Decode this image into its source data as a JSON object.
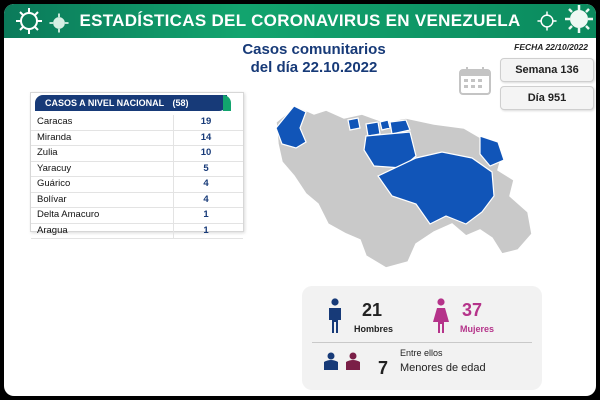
{
  "header": {
    "title": "ESTADÍSTICAS DEL CORONAVIRUS EN VENEZUELA",
    "fecha": "FECHA 22/10/2022"
  },
  "subtitle": {
    "line1": "Casos comunitarios",
    "line2": "del día 22.10.2022"
  },
  "info": {
    "semana": "Semana 136",
    "dia": "Día 951"
  },
  "table": {
    "header_label": "CASOS A NIVEL NACIONAL",
    "header_count": "(58)",
    "rows": [
      {
        "state": "Caracas",
        "cases": "19"
      },
      {
        "state": "Miranda",
        "cases": "14"
      },
      {
        "state": "Zulia",
        "cases": "10"
      },
      {
        "state": "Yaracuy",
        "cases": "5"
      },
      {
        "state": "Guárico",
        "cases": "4"
      },
      {
        "state": "Bolívar",
        "cases": "4"
      },
      {
        "state": "Delta Amacuro",
        "cases": "1"
      },
      {
        "state": "Aragua",
        "cases": "1"
      }
    ]
  },
  "stats": {
    "men_count": "21",
    "men_label": "Hombres",
    "women_count": "37",
    "women_label": "Mujeres",
    "minors_intro": "Entre ellos",
    "minors_count": "7",
    "minors_label": "Menores de edad"
  },
  "colors": {
    "brand_blue": "#173a78",
    "brand_green": "#12a46e",
    "map_highlight": "#1155b8",
    "map_base": "#c9c9c9",
    "women_accent": "#b5338a"
  },
  "icons": {
    "virus": "virus-icon",
    "calendar": "calendar-icon",
    "man": "man-icon",
    "woman": "woman-icon",
    "children": "children-icon"
  }
}
